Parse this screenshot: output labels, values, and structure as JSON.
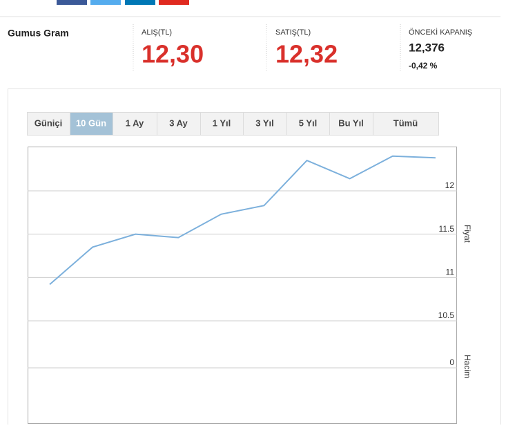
{
  "header": {
    "name": "Gumus Gram",
    "buy": {
      "label": "ALIŞ(TL)",
      "value": "12,30"
    },
    "sell": {
      "label": "SATIŞ(TL)",
      "value": "12,32"
    },
    "previous_close": {
      "label": "ÖNCEKİ KAPANIŞ",
      "value": "12,376",
      "change": "-0,42 %"
    }
  },
  "tabs": {
    "items": [
      "Güniçi",
      "10 Gün",
      "1 Ay",
      "3 Ay",
      "1 Yıl",
      "3 Yıl",
      "5 Yıl",
      "Bu Yıl",
      "Tümü"
    ],
    "active": 1
  },
  "chart_data": {
    "type": "line",
    "y_label": "Fiyat",
    "categories": [
      null,
      null,
      null,
      null,
      null,
      null,
      null,
      null,
      null,
      null
    ],
    "values": [
      10.92,
      11.35,
      11.5,
      11.46,
      11.73,
      11.83,
      12.35,
      12.14,
      12.4,
      12.38
    ],
    "color": "#7cb0dc",
    "ylim": [
      10.5,
      12.51
    ],
    "yticks": [
      10.5,
      11,
      11.5,
      12
    ],
    "grid": true
  },
  "volume": {
    "y_label": "Hacim",
    "yticks": [
      0
    ]
  }
}
